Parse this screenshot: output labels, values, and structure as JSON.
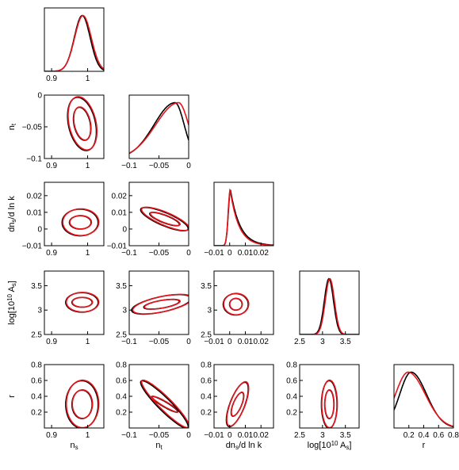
{
  "chart_data": {
    "type": "triangle-plot",
    "layout": "lower-triangular 5x5 grid of 1D marginals and 2D confidence contours",
    "grid": false,
    "legend": "none",
    "colors": {
      "series_a": "#000000",
      "series_b": "#e8141b"
    },
    "parameters": [
      {
        "id": "ns",
        "label": "n",
        "sub": "s",
        "range": [
          0.88,
          1.045
        ],
        "ticks": [
          0.9,
          1
        ],
        "tick_labels": [
          "0.9",
          "1"
        ]
      },
      {
        "id": "nt",
        "label": "n",
        "sub": "t",
        "range": [
          -0.1,
          0.0
        ],
        "ticks": [
          -0.1,
          -0.05,
          0
        ],
        "tick_labels": [
          "−0.1",
          "−0.05",
          "0"
        ]
      },
      {
        "id": "dns",
        "label_pre": "dn",
        "sub": "s",
        "label_post": "/d ln k",
        "range": [
          -0.01,
          0.028
        ],
        "ticks": [
          -0.01,
          0,
          0.01,
          0.02
        ],
        "tick_labels": [
          "−0.01",
          "0",
          "0.01",
          "0.02"
        ]
      },
      {
        "id": "logA",
        "label_pre": "log[10",
        "sup": "10",
        "label_mid": " A",
        "sub": "s",
        "label_post": "]",
        "range": [
          2.5,
          3.8
        ],
        "ticks": [
          2.5,
          3,
          3.5
        ],
        "tick_labels": [
          "2.5",
          "3",
          "3.5"
        ]
      },
      {
        "id": "r",
        "label": "r",
        "range": [
          0.0,
          0.8
        ],
        "ticks": [
          0.2,
          0.4,
          0.6,
          0.8
        ],
        "tick_labels": [
          "0.2",
          "0.4",
          "0.6",
          "0.8"
        ]
      }
    ],
    "axis_labels": {
      "ns": {
        "base": "n",
        "sub": "s"
      },
      "nt": {
        "base": "n",
        "sub": "t"
      },
      "dns": {
        "base": "dn",
        "sub": "s",
        "after": "/d ln k"
      },
      "logA": {
        "base": "log[10",
        "sup": "10",
        "mid": " A",
        "sub": "s",
        "after": "]"
      },
      "r": {
        "base": "r"
      }
    },
    "marginals": {
      "ns": {
        "mean": [
          0.985,
          0.987
        ],
        "sigma": [
          0.022,
          0.023
        ]
      },
      "nt": {
        "mode": [
          -0.023,
          -0.017
        ],
        "width": [
          0.022,
          0.024
        ]
      },
      "dns": {
        "mode": [
          0.0005,
          0.0003
        ],
        "width": [
          0.003,
          0.0028
        ],
        "tail": [
          0.006,
          0.0055
        ]
      },
      "logA": {
        "mean": [
          3.14,
          3.16
        ],
        "sigma": [
          0.1,
          0.1
        ]
      },
      "r": {
        "mode": [
          0.23,
          0.19
        ],
        "width": [
          0.18,
          0.2
        ]
      }
    },
    "contours": [
      {
        "x": "ns",
        "y": "nt",
        "center": [
          0.985,
          -0.045
        ],
        "radii": [
          [
            0.024,
            0.026
          ],
          [
            0.04,
            0.042
          ]
        ]
      },
      {
        "x": "ns",
        "y": "dns",
        "center": [
          0.98,
          0.004
        ],
        "radii": [
          [
            0.03,
            0.004
          ],
          [
            0.05,
            0.008
          ]
        ]
      },
      {
        "x": "nt",
        "y": "dns",
        "center": [
          -0.04,
          0.006
        ],
        "radii": [
          [
            0.025,
            0.004
          ],
          [
            0.04,
            0.007
          ]
        ]
      },
      {
        "x": "ns",
        "y": "logA",
        "center": [
          0.985,
          3.16
        ],
        "radii": [
          [
            0.028,
            0.1
          ],
          [
            0.045,
            0.2
          ]
        ]
      },
      {
        "x": "nt",
        "y": "logA",
        "center": [
          -0.045,
          3.12
        ],
        "radii": [
          [
            0.03,
            0.1
          ],
          [
            0.05,
            0.2
          ]
        ]
      },
      {
        "x": "dns",
        "y": "logA",
        "center": [
          0.004,
          3.12
        ],
        "radii": [
          [
            0.004,
            0.12
          ],
          [
            0.008,
            0.22
          ]
        ]
      },
      {
        "x": "ns",
        "y": "r",
        "center": [
          0.985,
          0.3
        ],
        "radii": [
          [
            0.028,
            0.18
          ],
          [
            0.045,
            0.3
          ]
        ]
      },
      {
        "x": "nt",
        "y": "r",
        "center": [
          -0.04,
          0.3
        ],
        "radii": [
          [
            0.022,
            0.1
          ],
          [
            0.04,
            0.3
          ]
        ]
      },
      {
        "x": "dns",
        "y": "r",
        "center": [
          0.005,
          0.3
        ],
        "radii": [
          [
            0.004,
            0.15
          ],
          [
            0.007,
            0.28
          ]
        ]
      },
      {
        "x": "logA",
        "y": "r",
        "center": [
          3.15,
          0.3
        ],
        "radii": [
          [
            0.1,
            0.18
          ],
          [
            0.17,
            0.3
          ]
        ]
      }
    ]
  }
}
